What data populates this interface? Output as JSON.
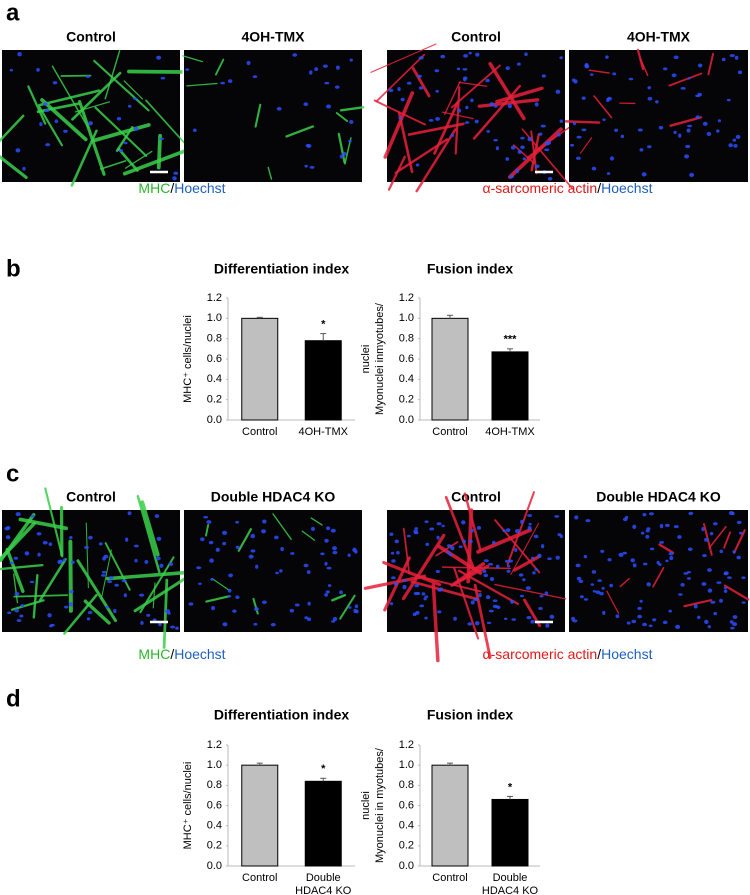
{
  "figure_a": {
    "label": "a",
    "headers": [
      "Control",
      "4OH-TMX",
      "Control",
      "4OH-TMX"
    ],
    "captions": [
      [
        {
          "text": "MHC",
          "color": "#2bb52b"
        },
        {
          "text": "/",
          "color": "#000000"
        },
        {
          "text": "Hoechst",
          "color": "#1f5fbf"
        }
      ],
      [
        {
          "text": "α-sarcomeric actin",
          "color": "#e01919"
        },
        {
          "text": "/",
          "color": "#000000"
        },
        {
          "text": "Hoechst",
          "color": "#1f5fbf"
        }
      ]
    ]
  },
  "figure_c": {
    "label": "c",
    "headers": [
      "Control",
      "Double HDAC4 KO",
      "Control",
      "Double HDAC4 KO"
    ],
    "captions": [
      [
        {
          "text": "MHC",
          "color": "#2bb52b"
        },
        {
          "text": "/",
          "color": "#000000"
        },
        {
          "text": "Hoechst",
          "color": "#1f5fbf"
        }
      ],
      [
        {
          "text": "α-sarcomeric actin",
          "color": "#e01919"
        },
        {
          "text": "/",
          "color": "#000000"
        },
        {
          "text": "Hoechst",
          "color": "#1f5fbf"
        }
      ]
    ]
  },
  "panel_b": "b",
  "panel_d": "d",
  "chart_data": [
    {
      "type": "bar",
      "title": "Differentiation index",
      "ylabel": [
        "MHC⁺ cells/nuclei"
      ],
      "categories": [
        [
          "Control"
        ],
        [
          "4OH-TMX"
        ]
      ],
      "values": [
        1.0,
        0.78
      ],
      "errors": [
        0.01,
        0.07
      ],
      "annotations": [
        null,
        "*"
      ],
      "colors": [
        "#bfbfbf",
        "#000000"
      ],
      "ylim": [
        0,
        1.2
      ],
      "yticks": [
        {
          "value": 0,
          "label": "0.0"
        },
        0.2,
        0.4,
        0.6,
        0.8,
        {
          "value": 1,
          "label": "1.0"
        },
        1.2
      ]
    },
    {
      "type": "bar",
      "title": "Fusion index",
      "ylabel": [
        "Myonuclei inmyotubes/",
        "nuclei"
      ],
      "categories": [
        [
          "Control"
        ],
        [
          "4OH-TMX"
        ]
      ],
      "values": [
        1.0,
        0.67
      ],
      "errors": [
        0.03,
        0.03
      ],
      "annotations": [
        null,
        "***"
      ],
      "colors": [
        "#bfbfbf",
        "#000000"
      ],
      "ylim": [
        0,
        1.2
      ],
      "yticks": [
        {
          "value": 0,
          "label": "0.0"
        },
        0.2,
        0.4,
        0.6,
        0.8,
        {
          "value": 1,
          "label": "1.0"
        },
        1.2
      ]
    },
    {
      "type": "bar",
      "title": "Differentiation index",
      "ylabel": [
        "MHC⁺ cells/nuclei"
      ],
      "categories": [
        [
          "Control"
        ],
        [
          "Double",
          "HDAC4 KO"
        ]
      ],
      "values": [
        1.0,
        0.84
      ],
      "errors": [
        0.02,
        0.03
      ],
      "annotations": [
        null,
        "*"
      ],
      "colors": [
        "#bfbfbf",
        "#000000"
      ],
      "ylim": [
        0,
        1.2
      ],
      "yticks": [
        {
          "value": 0,
          "label": "0.0"
        },
        0.2,
        0.4,
        0.6,
        0.8,
        {
          "value": 1,
          "label": "1.0"
        },
        1.2
      ]
    },
    {
      "type": "bar",
      "title": "Fusion index",
      "ylabel": [
        "Myonuclei in myotubes/",
        "nuclei"
      ],
      "categories": [
        [
          "Control"
        ],
        [
          "Double",
          "HDAC4 KO"
        ]
      ],
      "values": [
        1.0,
        0.66
      ],
      "errors": [
        0.02,
        0.03
      ],
      "annotations": [
        null,
        "*"
      ],
      "colors": [
        "#bfbfbf",
        "#000000"
      ],
      "ylim": [
        0,
        1.2
      ],
      "yticks": [
        {
          "value": 0,
          "label": "0.0"
        },
        0.2,
        0.4,
        0.6,
        0.8,
        {
          "value": 1,
          "label": "1.0"
        },
        1.2
      ]
    }
  ]
}
